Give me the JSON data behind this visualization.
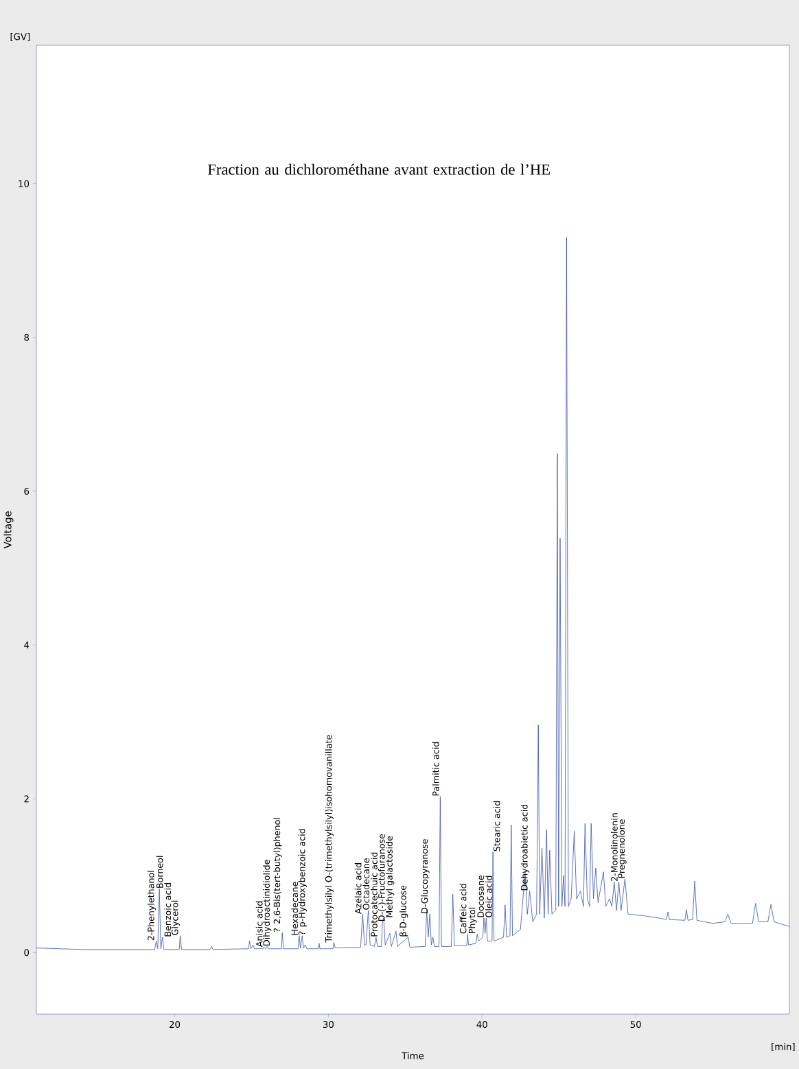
{
  "chart_data": {
    "type": "line",
    "title": "Fraction au dichlorométhane avant extraction de l’HE",
    "xlabel": "Time",
    "ylabel": "Voltage",
    "xlim": [
      11,
      60
    ],
    "ylim": [
      -0.8,
      11.8
    ],
    "xticks": [
      20,
      30,
      40,
      50
    ],
    "yticks": [
      0,
      2,
      4,
      6,
      8,
      10
    ],
    "grid": false,
    "marker": "none",
    "line_style": "solid",
    "series": [
      {
        "color": "#3a50a8",
        "x": [
          11,
          14,
          18.7,
          18.8,
          18.9,
          19.0,
          19.1,
          19.2,
          19.3,
          20.3,
          20.36,
          20.45,
          22.3,
          22.4,
          22.5,
          24.8,
          24.87,
          24.95,
          25.1,
          25.2,
          25.75,
          25.8,
          25.9,
          26.0,
          26.1,
          26.95,
          27.0,
          27.08,
          28.03,
          28.1,
          28.18,
          28.3,
          28.38,
          28.5,
          28.6,
          29.35,
          29.4,
          29.45,
          30.3,
          30.36,
          30.45,
          32.1,
          32.23,
          32.35,
          32.45,
          32.6,
          32.72,
          33.0,
          33.1,
          33.2,
          33.45,
          33.52,
          33.6,
          33.7,
          34.0,
          34.1,
          34.4,
          34.5,
          35.2,
          35.3,
          36.3,
          36.4,
          36.5,
          36.6,
          36.7,
          36.8,
          36.9,
          37.2,
          37.28,
          37.36,
          38.0,
          38.1,
          38.2,
          39.0,
          39.06,
          39.12,
          39.6,
          39.69,
          39.78,
          40.05,
          40.12,
          40.2,
          40.27,
          40.35,
          40.65,
          40.71,
          40.78,
          41.4,
          41.5,
          41.6,
          41.82,
          41.9,
          41.98,
          42.5,
          42.8,
          42.95,
          43.1,
          43.3,
          43.55,
          43.66,
          43.75,
          43.9,
          44.05,
          44.2,
          44.3,
          44.4,
          44.55,
          44.8,
          44.9,
          44.98,
          45.08,
          45.2,
          45.3,
          45.4,
          45.5,
          45.62,
          45.8,
          46.0,
          46.15,
          46.4,
          46.6,
          46.7,
          46.85,
          47.0,
          47.1,
          47.25,
          47.4,
          47.55,
          47.9,
          48.05,
          48.3,
          48.45,
          48.6,
          48.75,
          48.9,
          49.05,
          49.3,
          49.5,
          50.5,
          51.5,
          52.0,
          52.1,
          52.2,
          53.2,
          53.3,
          53.4,
          53.7,
          53.84,
          53.98,
          55.0,
          55.8,
          56.0,
          56.2,
          57.6,
          57.8,
          58.0,
          58.6,
          58.8,
          59.0,
          60
        ],
        "values": [
          0.06,
          0.04,
          0.04,
          0.15,
          0.05,
          0.83,
          0.05,
          0.2,
          0.04,
          0.04,
          0.22,
          0.04,
          0.04,
          0.08,
          0.04,
          0.05,
          0.15,
          0.05,
          0.1,
          0.05,
          0.05,
          0.07,
          0.05,
          0.08,
          0.05,
          0.05,
          0.26,
          0.05,
          0.05,
          0.22,
          0.06,
          0.22,
          0.06,
          0.1,
          0.05,
          0.05,
          0.12,
          0.05,
          0.05,
          0.13,
          0.06,
          0.07,
          0.5,
          0.1,
          0.1,
          0.55,
          0.1,
          0.08,
          0.2,
          0.08,
          0.08,
          0.4,
          0.45,
          0.1,
          0.25,
          0.08,
          0.28,
          0.08,
          0.2,
          0.07,
          0.08,
          0.55,
          0.2,
          0.5,
          0.1,
          0.2,
          0.08,
          0.08,
          2.03,
          0.08,
          0.08,
          0.76,
          0.09,
          0.09,
          0.24,
          0.1,
          0.12,
          0.24,
          0.15,
          0.2,
          0.45,
          0.25,
          0.45,
          0.15,
          0.15,
          1.31,
          0.15,
          0.2,
          0.62,
          0.2,
          0.22,
          1.66,
          0.22,
          0.3,
          1.05,
          0.5,
          0.8,
          0.4,
          0.5,
          2.96,
          0.5,
          1.36,
          0.45,
          1.6,
          0.5,
          1.33,
          0.5,
          0.55,
          6.49,
          0.6,
          5.39,
          0.6,
          1.0,
          0.6,
          9.3,
          0.6,
          0.7,
          1.58,
          0.7,
          0.8,
          0.6,
          1.68,
          0.7,
          0.6,
          1.68,
          0.7,
          1.1,
          0.65,
          1.05,
          0.6,
          0.7,
          0.6,
          0.92,
          0.55,
          0.92,
          0.55,
          0.96,
          0.5,
          0.48,
          0.45,
          0.43,
          0.53,
          0.43,
          0.42,
          0.56,
          0.42,
          0.43,
          0.93,
          0.42,
          0.38,
          0.4,
          0.5,
          0.38,
          0.38,
          0.64,
          0.4,
          0.4,
          0.63,
          0.4,
          0.34
        ]
      }
    ],
    "annotations": [
      "[GV]",
      "[min]",
      {
        "text": "2-Phenylethanol",
        "x": 18.8,
        "y": 0.15
      },
      {
        "text": "Borneol",
        "x": 19.0,
        "y": 0.83
      },
      {
        "text": "Benzoic acid",
        "x": 19.2,
        "y": 0.2
      },
      {
        "text": "Glycerol",
        "x": 20.36,
        "y": 0.22
      },
      {
        "text": "Anisic acid",
        "x": 25.8,
        "y": 0.07
      },
      {
        "text": "Dihydroactinidiolide",
        "x": 26.0,
        "y": 0.08
      },
      {
        "text": "? 2,6-Bis(tert-butyl)phenol",
        "x": 27.0,
        "y": 0.26
      },
      {
        "text": "Hexadecane",
        "x": 28.1,
        "y": 0.22
      },
      {
        "text": "? p-Hydroxybenzoic acid",
        "x": 28.3,
        "y": 0.22
      },
      {
        "text": "Trimethylsilyl O-(trimethylsilyl)isohomovanillate",
        "x": 30.36,
        "y": 0.13
      },
      {
        "text": "Azelaic acid",
        "x": 32.23,
        "y": 0.5
      },
      {
        "text": "Octadecane",
        "x": 32.6,
        "y": 0.55
      },
      {
        "text": "Protocatechuic acid",
        "x": 33.1,
        "y": 0.2
      },
      {
        "text": "D-(-)-Fructofuranose",
        "x": 33.52,
        "y": 0.4
      },
      {
        "text": "Methyl galactoside",
        "x": 33.6,
        "y": 0.45
      },
      {
        "text": "β-D-glucose",
        "x": 35.2,
        "y": 0.2
      },
      {
        "text": "D-Glucopyranose",
        "x": 36.6,
        "y": 0.5
      },
      {
        "text": "Palmitic acid",
        "x": 37.28,
        "y": 2.03
      },
      {
        "text": "Caffeic acid",
        "x": 39.06,
        "y": 0.24
      },
      {
        "text": "Phytol",
        "x": 39.69,
        "y": 0.24
      },
      {
        "text": "Docosane",
        "x": 40.12,
        "y": 0.45
      },
      {
        "text": "Oleic acid",
        "x": 40.27,
        "y": 0.45
      },
      {
        "text": "Stearic acid",
        "x": 40.71,
        "y": 1.31
      },
      {
        "text": "Dehydroabietic acid",
        "x": 43.1,
        "y": 0.8
      },
      {
        "text": "2-Monolinolenin",
        "x": 48.9,
        "y": 0.92
      },
      {
        "text": "Pregnenolone",
        "x": 49.3,
        "y": 0.96
      }
    ]
  }
}
